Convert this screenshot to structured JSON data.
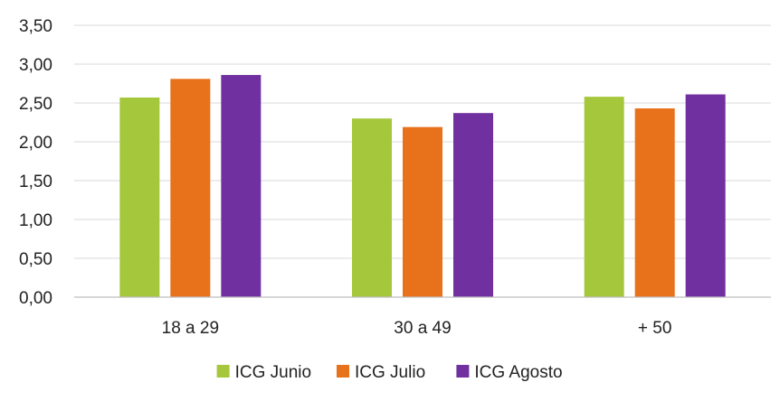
{
  "chart_data": {
    "type": "bar",
    "categories": [
      "18 a 29",
      "30 a 49",
      "+ 50"
    ],
    "series": [
      {
        "name": "ICG Junio",
        "color": "#a5c73b",
        "values": [
          2.57,
          2.3,
          2.58
        ]
      },
      {
        "name": "ICG Julio",
        "color": "#e8711c",
        "values": [
          2.81,
          2.19,
          2.43
        ]
      },
      {
        "name": "ICG Agosto",
        "color": "#7030a0",
        "values": [
          2.86,
          2.37,
          2.61
        ]
      }
    ],
    "y_ticks": [
      "0,00",
      "0,50",
      "1,00",
      "1,50",
      "2,00",
      "2,50",
      "3,00",
      "3,50"
    ],
    "ylim": [
      0,
      3.5
    ],
    "grid": true,
    "legend": "bottom-center",
    "title": "",
    "xlabel": "",
    "ylabel": ""
  }
}
